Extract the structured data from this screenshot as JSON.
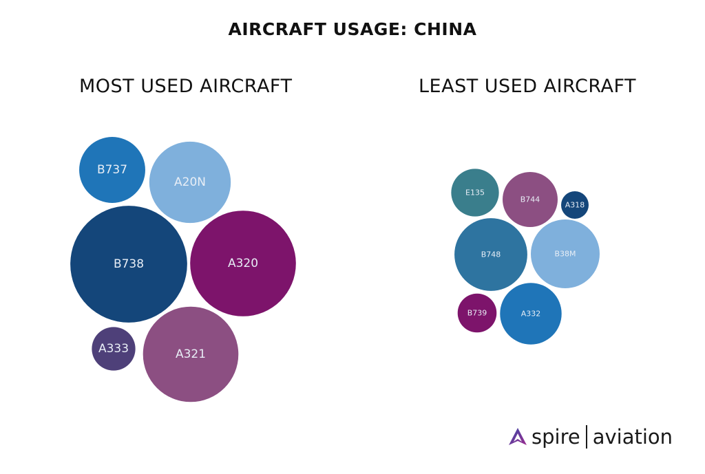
{
  "title": "AIRCRAFT USAGE: CHINA",
  "chart_data": [
    {
      "type": "bubble",
      "title": "MOST USED AIRCRAFT",
      "bubbles": [
        {
          "label": "B737",
          "size": 23,
          "color": "#1f75b8"
        },
        {
          "label": "A20N",
          "size": 35,
          "color": "#7fb0dc"
        },
        {
          "label": "B738",
          "size": 72,
          "color": "#14467a"
        },
        {
          "label": "A320",
          "size": 59,
          "color": "#7d146b"
        },
        {
          "label": "A333",
          "size": 10,
          "color": "#4e4079"
        },
        {
          "label": "A321",
          "size": 48,
          "color": "#8c4f82"
        }
      ]
    },
    {
      "type": "bubble",
      "title": "LEAST USED AIRCRAFT",
      "bubbles": [
        {
          "label": "E135",
          "size": 12,
          "color": "#3a7e8c"
        },
        {
          "label": "B744",
          "size": 16,
          "color": "#8c4f82"
        },
        {
          "label": "A318",
          "size": 4,
          "color": "#14467a"
        },
        {
          "label": "B748",
          "size": 28,
          "color": "#2e74a0"
        },
        {
          "label": "B38M",
          "size": 25,
          "color": "#7fb0dc"
        },
        {
          "label": "B739",
          "size": 8,
          "color": "#7d146b"
        },
        {
          "label": "A332",
          "size": 20,
          "color": "#1f75b8"
        }
      ]
    }
  ],
  "logo": {
    "brand": "spire",
    "division": "aviation"
  }
}
